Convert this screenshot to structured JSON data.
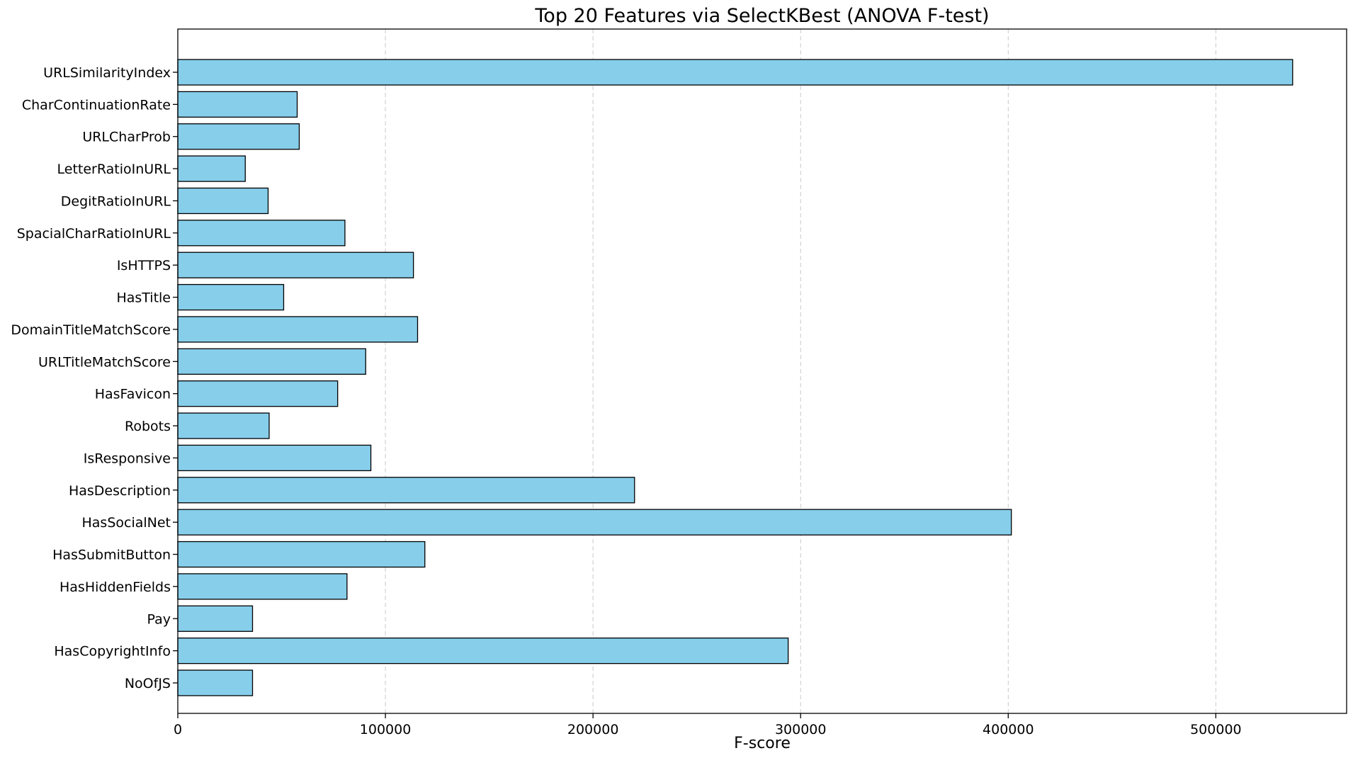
{
  "chart_data": {
    "type": "bar",
    "orientation": "horizontal",
    "title": "Top 20 Features via SelectKBest (ANOVA F-test)",
    "xlabel": "F-score",
    "ylabel": "",
    "xlim": [
      0,
      563000
    ],
    "xticks": [
      0,
      100000,
      200000,
      300000,
      400000,
      500000
    ],
    "xtick_labels": [
      "0",
      "100000",
      "200000",
      "300000",
      "400000",
      "500000"
    ],
    "grid": "x-axis dashed",
    "bar_color": "#87ceeb",
    "edge_color": "#000000",
    "categories": [
      "URLSimilarityIndex",
      "CharContinuationRate",
      "URLCharProb",
      "LetterRatioInURL",
      "DegitRatioInURL",
      "SpacialCharRatioInURL",
      "IsHTTPS",
      "HasTitle",
      "DomainTitleMatchScore",
      "URLTitleMatchScore",
      "HasFavicon",
      "Robots",
      "IsResponsive",
      "HasDescription",
      "HasSocialNet",
      "HasSubmitButton",
      "HasHiddenFields",
      "Pay",
      "HasCopyrightInfo",
      "NoOfJS"
    ],
    "values": [
      537000,
      57500,
      58500,
      32500,
      43500,
      80500,
      113500,
      51000,
      115500,
      90500,
      77000,
      44000,
      93000,
      220000,
      401500,
      119000,
      81500,
      36000,
      294000,
      36000
    ]
  }
}
